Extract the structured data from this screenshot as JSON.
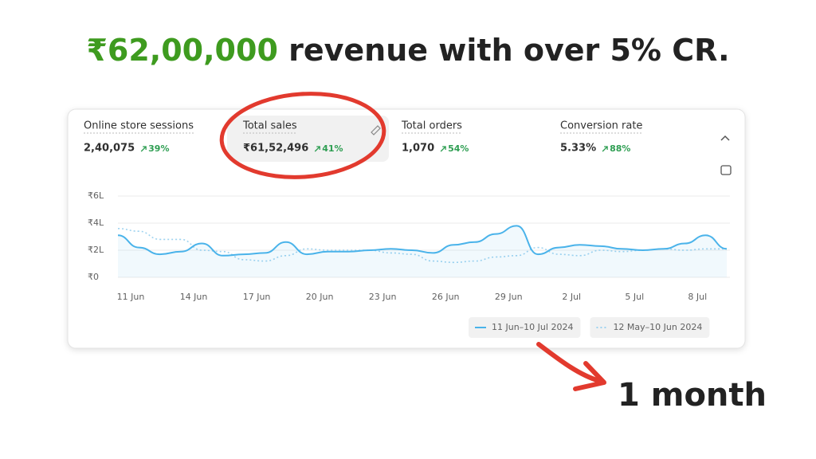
{
  "headline": {
    "amount": "₹62,00,000",
    "rest": " revenue with over 5% CR."
  },
  "metrics": [
    {
      "name": "Online store sessions",
      "value": "2,40,075",
      "change": "39%"
    },
    {
      "name": "Total sales",
      "value": "₹61,52,496",
      "change": "41%"
    },
    {
      "name": "Total orders",
      "value": "1,070",
      "change": "54%"
    },
    {
      "name": "Conversion rate",
      "value": "5.33%",
      "change": "88%"
    }
  ],
  "chart_data": {
    "type": "line",
    "categories": [
      "11 Jun",
      null,
      null,
      "14 Jun",
      null,
      null,
      "17 Jun",
      null,
      null,
      "20 Jun",
      null,
      null,
      "23 Jun",
      null,
      null,
      "26 Jun",
      null,
      null,
      "29 Jun",
      null,
      null,
      "2 Jul",
      null,
      null,
      "5 Jul",
      null,
      null,
      "8 Jul",
      null,
      null
    ],
    "series": [
      {
        "name": "11 Jun–10 Jul 2024",
        "color": "#4ab3ea",
        "dashed": false,
        "values": [
          310000,
          220000,
          170000,
          190000,
          250000,
          160000,
          170000,
          180000,
          260000,
          170000,
          190000,
          190000,
          200000,
          210000,
          200000,
          180000,
          240000,
          260000,
          320000,
          380000,
          170000,
          220000,
          240000,
          230000,
          210000,
          200000,
          210000,
          250000,
          310000,
          210000
        ]
      },
      {
        "name": "12 May–10 Jun 2024",
        "color": "#9fd3f0",
        "dashed": true,
        "values": [
          360000,
          340000,
          280000,
          280000,
          200000,
          190000,
          130000,
          120000,
          160000,
          210000,
          200000,
          200000,
          200000,
          180000,
          170000,
          120000,
          110000,
          120000,
          150000,
          160000,
          220000,
          170000,
          160000,
          200000,
          190000,
          200000,
          210000,
          200000,
          210000,
          210000
        ]
      }
    ],
    "ylim": [
      0,
      600000
    ],
    "yticks": [
      {
        "value": 0,
        "label": "₹0"
      },
      {
        "value": 200000,
        "label": "₹2L"
      },
      {
        "value": 400000,
        "label": "₹4L"
      },
      {
        "value": 600000,
        "label": "₹6L"
      }
    ],
    "grid": true
  },
  "annotation": "1 month"
}
